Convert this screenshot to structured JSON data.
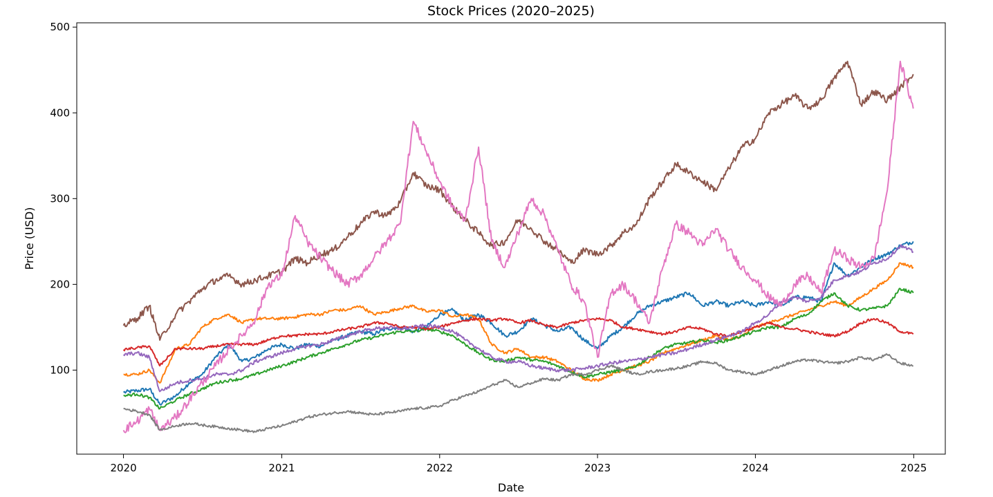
{
  "chart_data": {
    "type": "line",
    "title": "Stock Prices (2020–2025)",
    "xlabel": "Date",
    "ylabel": "Price (USD)",
    "x_axis": {
      "type": "date",
      "range": [
        "2019-09-15",
        "2025-03-15"
      ],
      "ticks": [
        "2020-01-01",
        "2021-01-01",
        "2022-01-01",
        "2023-01-01",
        "2024-01-01",
        "2025-01-01"
      ],
      "tick_labels": [
        "2020",
        "2021",
        "2022",
        "2023",
        "2024",
        "2025"
      ]
    },
    "y_axis": {
      "range": [
        2,
        505
      ],
      "ticks": [
        100,
        200,
        300,
        400,
        500
      ],
      "tick_labels": [
        "100",
        "200",
        "300",
        "400",
        "500"
      ]
    },
    "grid": false,
    "legend": "none",
    "x": [
      "2020-01-01",
      "2020-02-01",
      "2020-03-01",
      "2020-03-25",
      "2020-05-01",
      "2020-06-01",
      "2020-07-01",
      "2020-08-01",
      "2020-09-01",
      "2020-10-01",
      "2020-11-01",
      "2020-12-01",
      "2021-01-01",
      "2021-02-01",
      "2021-03-01",
      "2021-04-01",
      "2021-05-01",
      "2021-06-01",
      "2021-07-01",
      "2021-08-01",
      "2021-09-01",
      "2021-10-01",
      "2021-11-01",
      "2021-12-01",
      "2022-01-01",
      "2022-02-01",
      "2022-03-01",
      "2022-04-01",
      "2022-05-01",
      "2022-06-01",
      "2022-07-01",
      "2022-08-01",
      "2022-09-01",
      "2022-10-01",
      "2022-11-01",
      "2022-12-01",
      "2023-01-01",
      "2023-02-01",
      "2023-03-01",
      "2023-04-01",
      "2023-05-01",
      "2023-06-01",
      "2023-07-01",
      "2023-08-01",
      "2023-09-01",
      "2023-10-01",
      "2023-11-01",
      "2023-12-01",
      "2024-01-01",
      "2024-02-01",
      "2024-03-01",
      "2024-04-01",
      "2024-05-01",
      "2024-06-01",
      "2024-07-01",
      "2024-08-01",
      "2024-09-01",
      "2024-10-01",
      "2024-11-01",
      "2024-12-01",
      "2024-12-31"
    ],
    "series": [
      {
        "color": "#1f77b4",
        "values": [
          74,
          76,
          78,
          60,
          70,
          85,
          95,
          115,
          130,
          110,
          115,
          125,
          130,
          125,
          130,
          128,
          135,
          140,
          145,
          142,
          148,
          150,
          145,
          150,
          165,
          170,
          158,
          165,
          155,
          140,
          145,
          160,
          152,
          145,
          150,
          135,
          125,
          140,
          150,
          165,
          175,
          180,
          185,
          190,
          175,
          180,
          175,
          180,
          175,
          180,
          175,
          185,
          185,
          180,
          225,
          210,
          220,
          230,
          235,
          245,
          250
        ]
      },
      {
        "color": "#ff7f0e",
        "values": [
          95,
          95,
          100,
          85,
          125,
          130,
          150,
          160,
          165,
          155,
          160,
          160,
          160,
          162,
          165,
          165,
          170,
          170,
          175,
          165,
          168,
          172,
          175,
          168,
          170,
          162,
          165,
          160,
          130,
          120,
          125,
          115,
          115,
          110,
          100,
          90,
          88,
          95,
          100,
          105,
          110,
          120,
          125,
          130,
          135,
          140,
          135,
          140,
          150,
          155,
          160,
          165,
          170,
          175,
          180,
          175,
          185,
          195,
          205,
          225,
          220
        ]
      },
      {
        "color": "#2ca02c",
        "values": [
          70,
          72,
          68,
          55,
          65,
          72,
          78,
          85,
          88,
          90,
          95,
          100,
          105,
          110,
          115,
          120,
          125,
          130,
          135,
          138,
          142,
          145,
          145,
          148,
          145,
          140,
          130,
          120,
          112,
          110,
          115,
          112,
          110,
          105,
          98,
          92,
          95,
          98,
          100,
          105,
          115,
          125,
          130,
          132,
          135,
          132,
          135,
          140,
          145,
          150,
          150,
          160,
          165,
          180,
          190,
          175,
          170,
          172,
          175,
          195,
          190
        ]
      },
      {
        "color": "#d62728",
        "values": [
          124,
          126,
          128,
          105,
          125,
          125,
          125,
          128,
          130,
          130,
          130,
          135,
          140,
          140,
          142,
          142,
          145,
          148,
          150,
          155,
          155,
          150,
          150,
          148,
          150,
          155,
          158,
          160,
          158,
          160,
          155,
          158,
          152,
          150,
          155,
          158,
          160,
          158,
          150,
          148,
          145,
          142,
          145,
          150,
          148,
          142,
          140,
          145,
          150,
          155,
          150,
          148,
          145,
          142,
          140,
          145,
          155,
          160,
          155,
          145,
          142
        ]
      },
      {
        "color": "#9467bd",
        "values": [
          118,
          120,
          115,
          75,
          85,
          88,
          90,
          95,
          95,
          100,
          110,
          115,
          120,
          125,
          128,
          130,
          135,
          140,
          145,
          148,
          150,
          148,
          150,
          152,
          150,
          145,
          135,
          125,
          115,
          110,
          110,
          105,
          102,
          100,
          100,
          102,
          105,
          108,
          110,
          112,
          115,
          118,
          120,
          125,
          130,
          135,
          140,
          145,
          155,
          165,
          180,
          185,
          180,
          185,
          205,
          210,
          215,
          225,
          230,
          245,
          238
        ]
      },
      {
        "color": "#8c564b",
        "values": [
          152,
          160,
          175,
          135,
          165,
          180,
          195,
          205,
          210,
          200,
          205,
          210,
          215,
          230,
          225,
          235,
          240,
          255,
          270,
          285,
          280,
          295,
          330,
          315,
          310,
          290,
          275,
          260,
          245,
          250,
          275,
          265,
          250,
          240,
          225,
          240,
          235,
          245,
          260,
          270,
          300,
          320,
          340,
          330,
          320,
          310,
          335,
          360,
          370,
          400,
          410,
          420,
          405,
          415,
          440,
          460,
          410,
          425,
          415,
          430,
          445
        ]
      },
      {
        "color": "#e377c2",
        "values": [
          30,
          40,
          55,
          30,
          45,
          65,
          85,
          105,
          125,
          140,
          160,
          200,
          210,
          280,
          250,
          230,
          215,
          200,
          210,
          230,
          250,
          270,
          390,
          355,
          320,
          290,
          275,
          360,
          250,
          220,
          260,
          300,
          280,
          240,
          200,
          180,
          115,
          190,
          200,
          180,
          155,
          220,
          270,
          260,
          245,
          265,
          240,
          220,
          205,
          185,
          175,
          200,
          210,
          190,
          240,
          230,
          220,
          230,
          310,
          460,
          405
        ]
      },
      {
        "color": "#7f7f7f",
        "values": [
          55,
          52,
          48,
          30,
          35,
          38,
          36,
          34,
          32,
          30,
          28,
          32,
          35,
          40,
          45,
          48,
          50,
          52,
          50,
          48,
          50,
          52,
          55,
          56,
          58,
          65,
          70,
          75,
          82,
          88,
          80,
          85,
          90,
          88,
          95,
          95,
          100,
          105,
          100,
          95,
          98,
          100,
          102,
          105,
          110,
          108,
          100,
          98,
          95,
          100,
          105,
          110,
          112,
          110,
          108,
          110,
          115,
          112,
          118,
          108,
          105
        ]
      }
    ]
  }
}
